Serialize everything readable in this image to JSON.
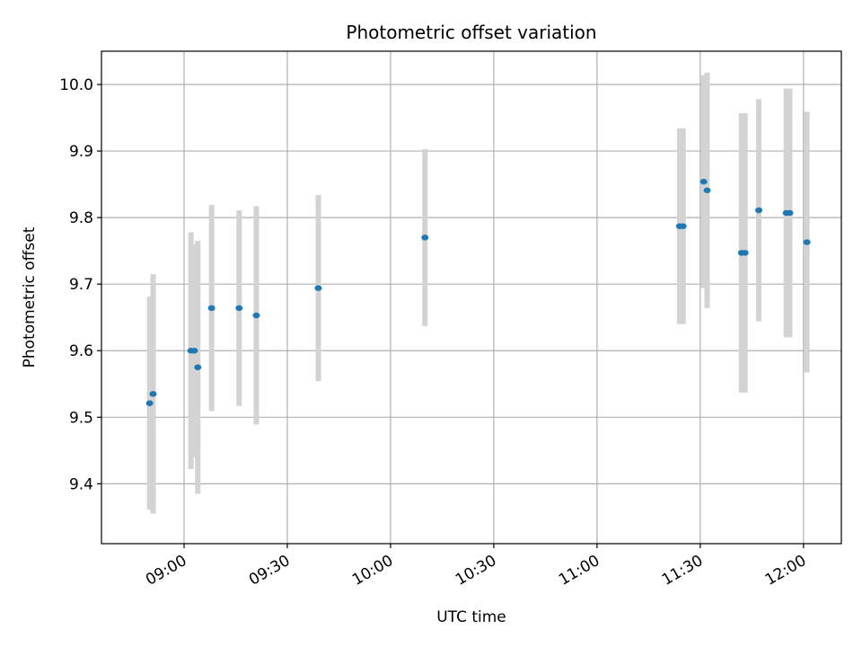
{
  "chart_data": {
    "type": "scatter",
    "title": "Photometric offset variation",
    "xlabel": "UTC time",
    "ylabel": "Photometric offset",
    "x_ticks": [
      "09:00",
      "09:30",
      "10:00",
      "10:30",
      "11:00",
      "11:30",
      "12:00"
    ],
    "y_ticks": [
      "9.4",
      "9.5",
      "9.6",
      "9.7",
      "9.8",
      "9.9",
      "10.0"
    ],
    "xlim": [
      "08:36",
      "12:11"
    ],
    "ylim": [
      9.31,
      10.05
    ],
    "grid": true,
    "colors": {
      "point": "#1f77b4",
      "errorbar": "#d3d3d3",
      "grid": "#b0b0b0"
    },
    "points": [
      {
        "x": "08:50",
        "y": 9.521,
        "err": 0.16
      },
      {
        "x": "08:51",
        "y": 9.535,
        "err": 0.18
      },
      {
        "x": "09:02",
        "y": 9.6,
        "err": 0.178
      },
      {
        "x": "09:03",
        "y": 9.6,
        "err": 0.16
      },
      {
        "x": "09:04",
        "y": 9.575,
        "err": 0.19
      },
      {
        "x": "09:08",
        "y": 9.664,
        "err": 0.155
      },
      {
        "x": "09:16",
        "y": 9.664,
        "err": 0.147
      },
      {
        "x": "09:21",
        "y": 9.653,
        "err": 0.164
      },
      {
        "x": "09:39",
        "y": 9.694,
        "err": 0.14
      },
      {
        "x": "10:10",
        "y": 9.77,
        "err": 0.133
      },
      {
        "x": "11:24",
        "y": 9.787,
        "err": 0.147
      },
      {
        "x": "11:25",
        "y": 9.787,
        "err": 0.147
      },
      {
        "x": "11:31",
        "y": 9.854,
        "err": 0.16
      },
      {
        "x": "11:32",
        "y": 9.841,
        "err": 0.177
      },
      {
        "x": "11:42",
        "y": 9.747,
        "err": 0.21
      },
      {
        "x": "11:43",
        "y": 9.747,
        "err": 0.21
      },
      {
        "x": "11:47",
        "y": 9.811,
        "err": 0.167
      },
      {
        "x": "11:55",
        "y": 9.807,
        "err": 0.187
      },
      {
        "x": "11:56",
        "y": 9.807,
        "err": 0.187
      },
      {
        "x": "12:01",
        "y": 9.763,
        "err": 0.196
      }
    ]
  }
}
